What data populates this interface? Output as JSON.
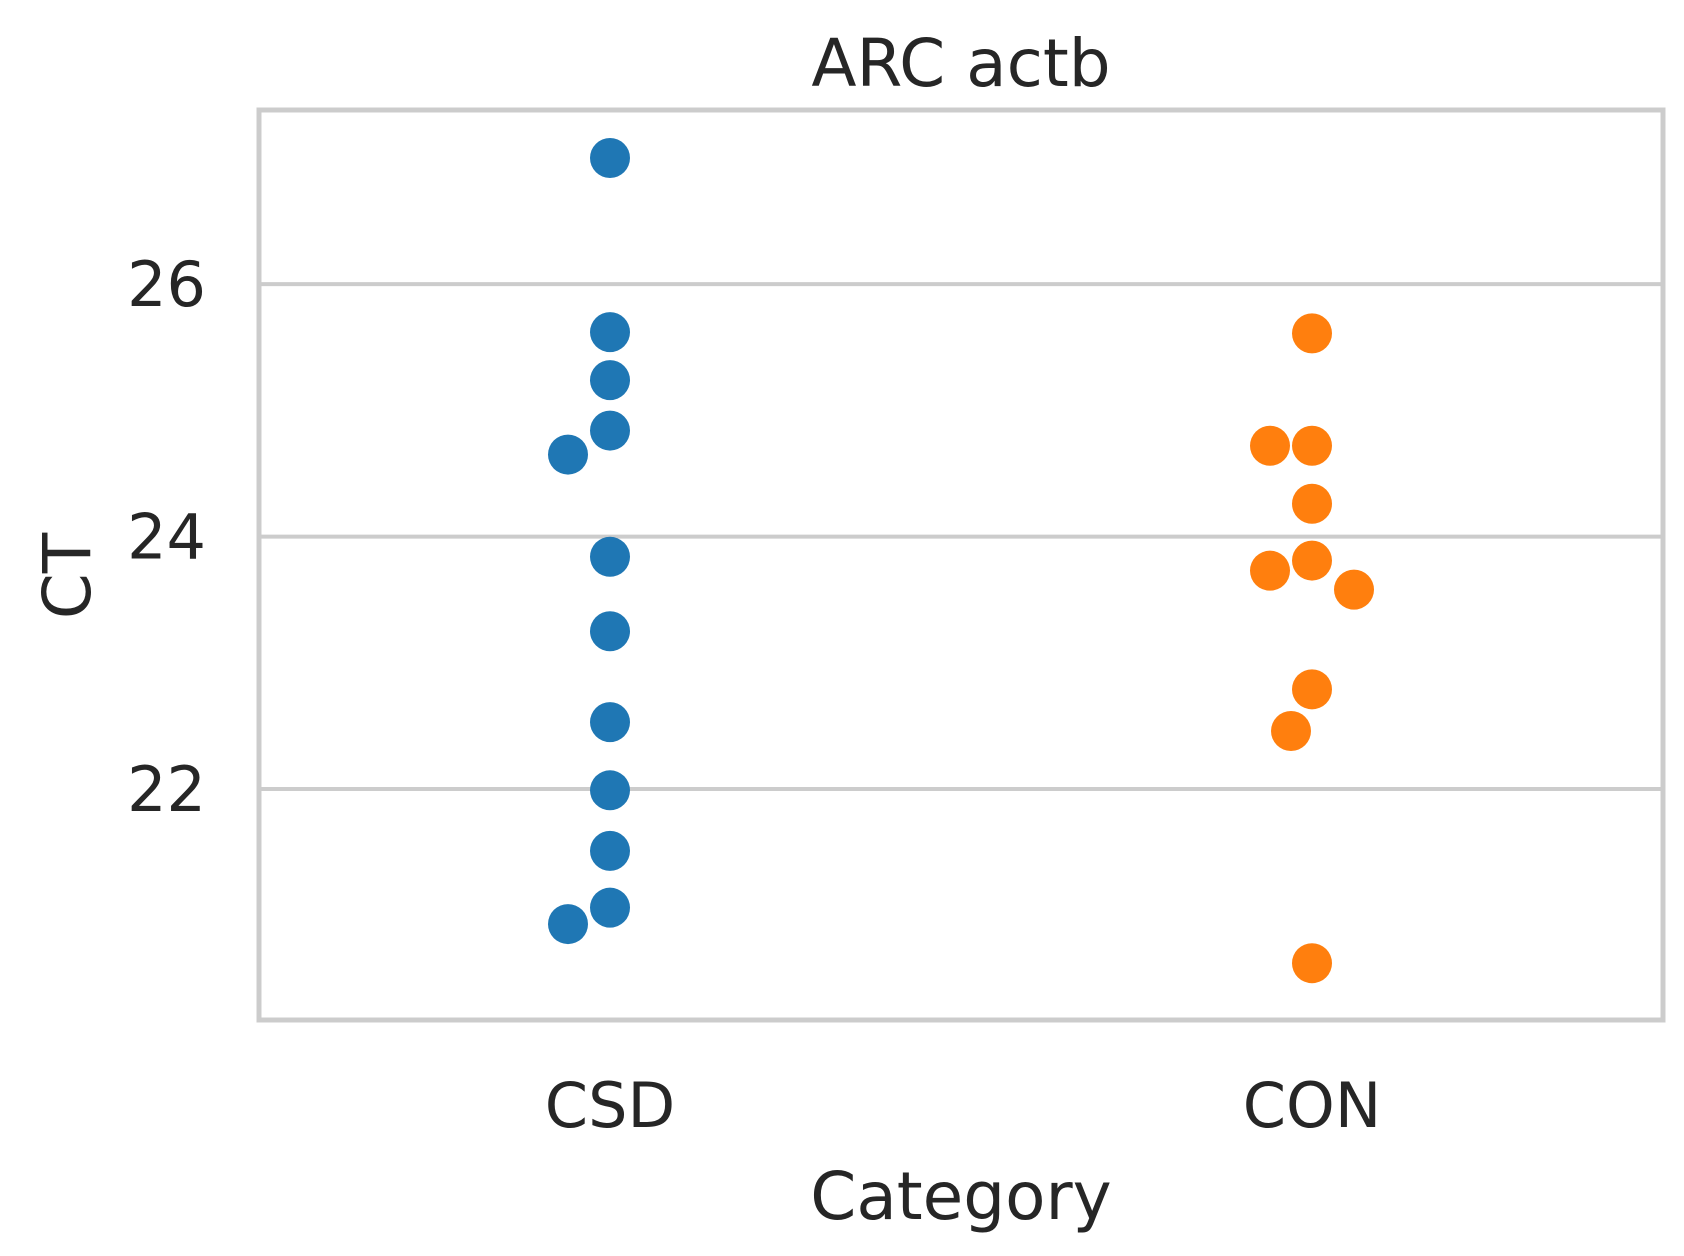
{
  "chart_data": {
    "type": "scatter",
    "subtype": "swarm",
    "title": "ARC actb",
    "xlabel": "Category",
    "ylabel": "CT",
    "categories": [
      "CSD",
      "CON"
    ],
    "ylim": [
      20.17,
      27.38
    ],
    "yticks": [
      22,
      24,
      26
    ],
    "grid": "horizontal",
    "series": [
      {
        "category": "CSD",
        "color": "#1f77b4",
        "values": [
          27.0,
          25.62,
          25.24,
          24.84,
          24.65,
          23.84,
          23.25,
          22.53,
          21.99,
          21.51,
          21.06,
          20.93
        ]
      },
      {
        "category": "CON",
        "color": "#ff7f0e",
        "values": [
          25.61,
          24.72,
          24.72,
          24.26,
          23.81,
          23.73,
          23.58,
          22.79,
          22.46,
          20.62
        ]
      }
    ]
  }
}
